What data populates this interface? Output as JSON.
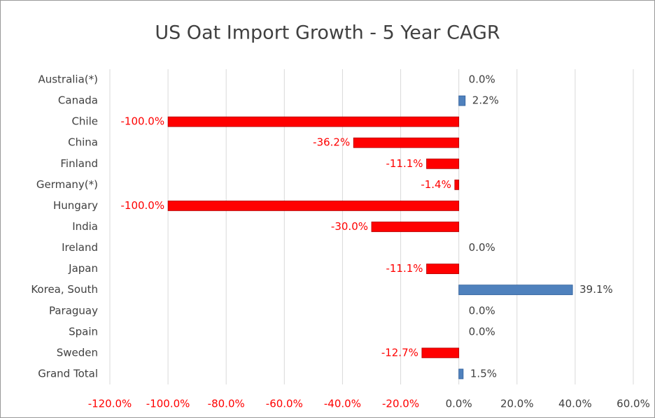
{
  "chart_data": {
    "type": "hbar",
    "title": "US Oat Import Growth - 5 Year CAGR",
    "categories": [
      "Australia(*)",
      "Canada",
      "Chile",
      "China",
      "Finland",
      "Germany(*)",
      "Hungary",
      "India",
      "Ireland",
      "Japan",
      "Korea, South",
      "Paraguay",
      "Spain",
      "Sweden",
      "Grand Total"
    ],
    "values": [
      0.0,
      2.2,
      -100.0,
      -36.2,
      -11.1,
      -1.4,
      -100.0,
      -30.0,
      0.0,
      -11.1,
      39.1,
      0.0,
      0.0,
      -12.7,
      1.5
    ],
    "value_labels": [
      "0.0%",
      "2.2%",
      "-100.0%",
      "-36.2%",
      "-11.1%",
      "-1.4%",
      "-100.0%",
      "-30.0%",
      "0.0%",
      "-11.1%",
      "39.1%",
      "0.0%",
      "0.0%",
      "-12.7%",
      "1.5%"
    ],
    "positive_color": "#4f81bd",
    "negative_color": "#ff0000",
    "xlim": [
      -120,
      60
    ],
    "xticks": [
      {
        "value": -120,
        "label": "-120.0%"
      },
      {
        "value": -100,
        "label": "-100.0%"
      },
      {
        "value": -80,
        "label": "-80.0%"
      },
      {
        "value": -60,
        "label": "-60.0%"
      },
      {
        "value": -40,
        "label": "-40.0%"
      },
      {
        "value": -20,
        "label": "-20.0%"
      },
      {
        "value": 0,
        "label": "0.0%"
      },
      {
        "value": 20,
        "label": "20.0%"
      },
      {
        "value": 40,
        "label": "40.0%"
      },
      {
        "value": 60,
        "label": "60.0%"
      }
    ],
    "grid": true
  }
}
